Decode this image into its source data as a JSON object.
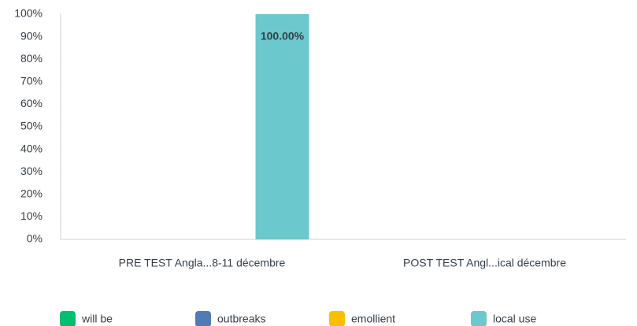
{
  "chart_data": {
    "type": "bar",
    "categories": [
      "PRE TEST Angla...8-11 décembre",
      "POST TEST Angl...ical décembre"
    ],
    "series": [
      {
        "name": "will be",
        "color": "#00bf6f",
        "values": [
          0,
          0
        ]
      },
      {
        "name": "outbreaks",
        "color": "#507cb6",
        "values": [
          0,
          0
        ]
      },
      {
        "name": "emollient",
        "color": "#f9be00",
        "values": [
          0,
          0
        ]
      },
      {
        "name": "local use",
        "color": "#6bc8cd",
        "values": [
          100,
          0
        ],
        "value_labels": [
          "100.00%",
          null
        ]
      }
    ],
    "ylim": [
      0,
      100
    ],
    "yticks": [
      {
        "value": 0,
        "label": "0%"
      },
      {
        "value": 10,
        "label": "10%"
      },
      {
        "value": 20,
        "label": "20%"
      },
      {
        "value": 30,
        "label": "30%"
      },
      {
        "value": 40,
        "label": "40%"
      },
      {
        "value": 50,
        "label": "50%"
      },
      {
        "value": 60,
        "label": "60%"
      },
      {
        "value": 70,
        "label": "70%"
      },
      {
        "value": 80,
        "label": "80%"
      },
      {
        "value": 90,
        "label": "90%"
      },
      {
        "value": 100,
        "label": "100%"
      }
    ],
    "grid": false,
    "legend": "bottom"
  }
}
